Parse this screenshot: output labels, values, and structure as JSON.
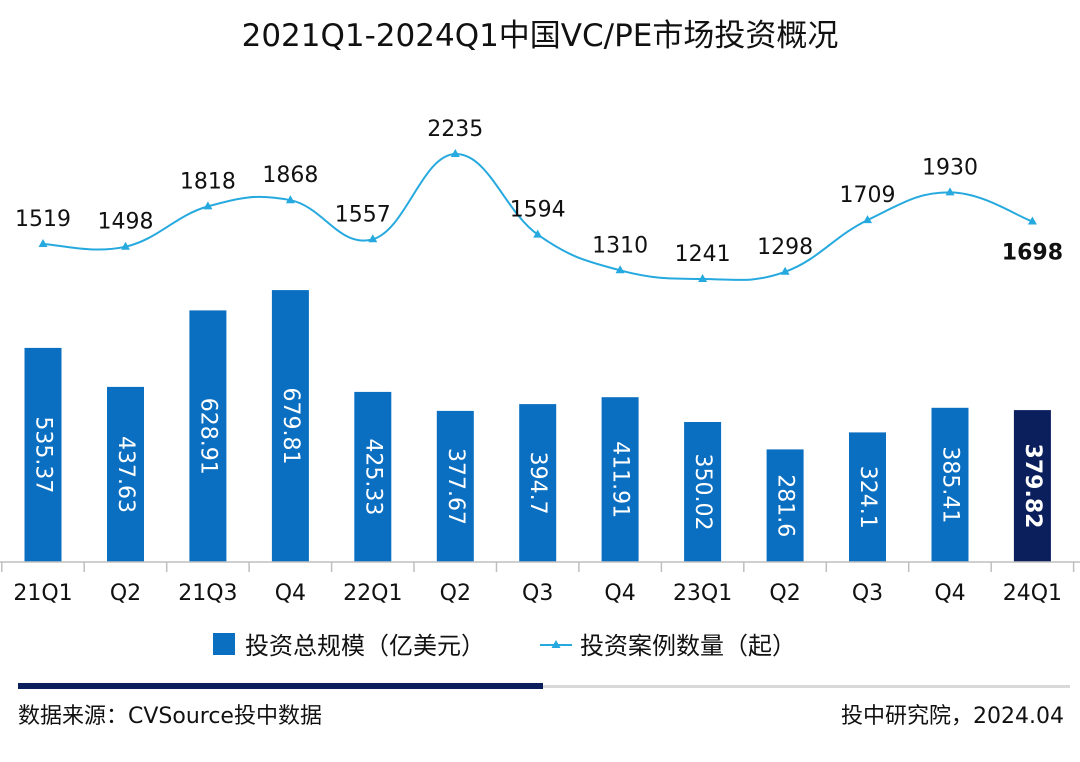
{
  "colors": {
    "bar": "#0b6fc1",
    "bar_highlight": "#0a1f5c",
    "line": "#26a9de",
    "axis": "#bfbfbf",
    "rule_dark": "#0a1f5c",
    "rule_light": "#d9d9d9"
  },
  "chart_data": {
    "type": "bar",
    "title": "2021Q1-2024Q1中国VC/PE市场投资概况",
    "categories": [
      "21Q1",
      "Q2",
      "21Q3",
      "Q4",
      "22Q1",
      "Q2",
      "Q3",
      "Q4",
      "23Q1",
      "Q2",
      "Q3",
      "Q4",
      "24Q1"
    ],
    "series": [
      {
        "name": "投资总规模（亿美元）",
        "type": "bar",
        "values": [
          535.37,
          437.63,
          628.91,
          679.81,
          425.33,
          377.67,
          394.7,
          411.91,
          350.02,
          281.6,
          324.1,
          385.41,
          379.82
        ],
        "labels": [
          "535.37",
          "437.63",
          "628.91",
          "679.81",
          "425.33",
          "377.67",
          "394.7",
          "411.91",
          "350.02",
          "281.6",
          "324.1",
          "385.41",
          "379.82"
        ],
        "highlight_index": 12
      },
      {
        "name": "投资案例数量（起）",
        "type": "line",
        "values": [
          1519,
          1498,
          1818,
          1868,
          1557,
          2235,
          1594,
          1310,
          1241,
          1298,
          1709,
          1930,
          1698
        ],
        "labels": [
          "1519",
          "1498",
          "1818",
          "1868",
          "1557",
          "2235",
          "1594",
          "1310",
          "1241",
          "1298",
          "1709",
          "1930",
          "1698"
        ],
        "highlight_index": 12
      }
    ],
    "bar_axis_range": [
      0,
      1000
    ],
    "line_axis_range": [
      -1800,
      2600
    ],
    "grid": false,
    "legend_position": "bottom"
  },
  "footer": {
    "source": "数据来源：CVSource投中数据",
    "credit": "投中研究院，2024.04"
  }
}
